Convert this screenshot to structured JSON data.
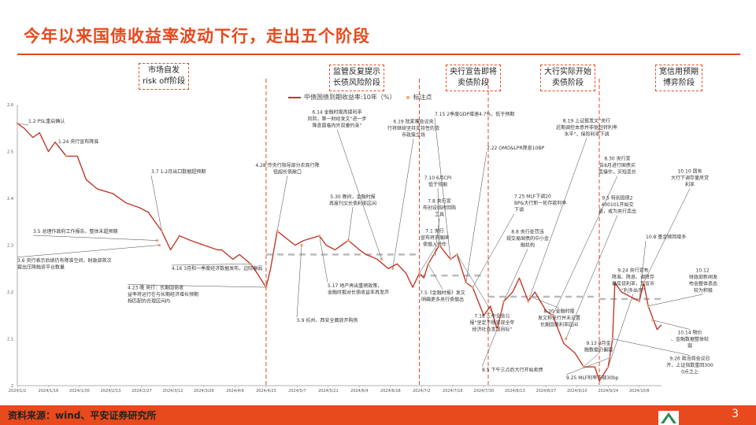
{
  "title": "今年以来国债收益率波动下行，走出五个阶段",
  "phases": [
    {
      "line1": "市场自发",
      "line2": "risk off阶段"
    },
    {
      "line1": "监管反复提示",
      "line2": "长债风险阶段"
    },
    {
      "line1": "央行宣告即将",
      "line2": "卖债阶段"
    },
    {
      "line1": "大行实际开始",
      "line2": "卖债阶段"
    },
    {
      "line1": "宽信用预期",
      "line2": "博弈阶段"
    }
  ],
  "legend": {
    "series": "中债国债到期收益率:10年（%）",
    "marker": "标注点"
  },
  "source": "资料来源：wind、平安证券研究所",
  "page_number": "3",
  "colors": {
    "accent": "#e8491d",
    "line": "#c0392b",
    "dashed_level": "#bbbbbb"
  },
  "chart_data": {
    "type": "line",
    "x_axis_kind": "date",
    "ylim": [
      2.0,
      2.6
    ],
    "y_ticks": [
      "2",
      "2.1",
      "2.2",
      "2.3",
      "2.4",
      "2.5",
      "2.6"
    ],
    "x_ticks": [
      "2024/1/2",
      "2024/1/16",
      "2024/1/30",
      "2024/2/13",
      "2024/2/27",
      "2024/3/12",
      "2024/3/26",
      "2024/4/9",
      "2024/4/23",
      "2024/5/7",
      "2024/5/21",
      "2024/6/4",
      "2024/6/18",
      "2024/7/2",
      "2024/7/16",
      "2024/7/30",
      "2024/8/13",
      "2024/8/27",
      "2024/9/10",
      "2024/9/24",
      "2024/10/8"
    ],
    "phase_dividers": [
      "2024/4/23",
      "2024/7/1",
      "2024/8/1",
      "2024/9/20"
    ],
    "phase_levels": [
      {
        "from": "2024/4/23",
        "to": "2024/6/30",
        "y": 2.28
      },
      {
        "from": "2024/7/1",
        "to": "2024/7/31",
        "y": 2.235
      },
      {
        "from": "2024/8/1",
        "to": "2024/9/20",
        "y": 2.19
      },
      {
        "from": "2024/9/20",
        "to": "2024/10/18",
        "y": 2.185
      }
    ],
    "series": [
      {
        "x": [
          "2024/1/2",
          "2024/1/5",
          "2024/1/9",
          "2024/1/12",
          "2024/1/16",
          "2024/1/19",
          "2024/1/24",
          "2024/1/29",
          "2024/2/2",
          "2024/2/7",
          "2024/2/14",
          "2024/2/20",
          "2024/2/26",
          "2024/3/1",
          "2024/3/7",
          "2024/3/11",
          "2024/3/15",
          "2024/3/20",
          "2024/3/26",
          "2024/4/1",
          "2024/4/3",
          "2024/4/8",
          "2024/4/11",
          "2024/4/16",
          "2024/4/19",
          "2024/4/23",
          "2024/4/25",
          "2024/4/28",
          "2024/5/6",
          "2024/5/10",
          "2024/5/17",
          "2024/5/20",
          "2024/5/24",
          "2024/5/30",
          "2024/6/4",
          "2024/6/7",
          "2024/6/12",
          "2024/6/17",
          "2024/6/21",
          "2024/6/25",
          "2024/6/28",
          "2024/7/1",
          "2024/7/3",
          "2024/7/5",
          "2024/7/10",
          "2024/7/15",
          "2024/7/18",
          "2024/7/22",
          "2024/7/25",
          "2024/7/30",
          "2024/8/2",
          "2024/8/5",
          "2024/8/8",
          "2024/8/12",
          "2024/8/15",
          "2024/8/19",
          "2024/8/22",
          "2024/8/27",
          "2024/8/30",
          "2024/9/4",
          "2024/9/9",
          "2024/9/13",
          "2024/9/18",
          "2024/9/20",
          "2024/9/24",
          "2024/9/26",
          "2024/9/27",
          "2024/9/30",
          "2024/10/8",
          "2024/10/10",
          "2024/10/12",
          "2024/10/16",
          "2024/10/18"
        ],
        "y": [
          2.56,
          2.55,
          2.53,
          2.54,
          2.5,
          2.52,
          2.49,
          2.49,
          2.44,
          2.42,
          2.41,
          2.39,
          2.38,
          2.37,
          2.33,
          2.29,
          2.32,
          2.31,
          2.3,
          2.29,
          2.29,
          2.27,
          2.28,
          2.26,
          2.24,
          2.21,
          2.25,
          2.33,
          2.3,
          2.31,
          2.32,
          2.3,
          2.29,
          2.31,
          2.29,
          2.28,
          2.27,
          2.25,
          2.26,
          2.24,
          2.21,
          2.24,
          2.23,
          2.26,
          2.3,
          2.27,
          2.28,
          2.22,
          2.21,
          2.15,
          2.17,
          2.12,
          2.18,
          2.2,
          2.23,
          2.18,
          2.2,
          2.16,
          2.15,
          2.09,
          2.07,
          2.04,
          2.04,
          2.01,
          2.04,
          2.1,
          2.22,
          2.2,
          2.18,
          2.22,
          2.17,
          2.12,
          2.13
        ]
      }
    ],
    "annotations": [
      {
        "text": "1.2 PSL重启确认",
        "date": "2024/1/2",
        "y": 2.56
      },
      {
        "text": "1.24 央行宣布降准",
        "date": "2024/1/24",
        "y": 2.49
      },
      {
        "text": "3.7 1-2月出口数据超预期",
        "date": "2024/3/7",
        "y": 2.33
      },
      {
        "text": "3.5 总理作政府工作报告，整体未超预期",
        "date": "2024/3/5",
        "y": 2.31
      },
      {
        "text": "3.6 央行表示后续仍有降准空间，财政部首次提出压降融资平台数量",
        "date": "2024/3/6",
        "y": 2.3
      },
      {
        "text": "4.16 3月和一季度经济数据发布，边际偏弱",
        "date": "2024/4/16",
        "y": 2.26
      },
      {
        "text": "4.23 晚 央行：长期国债收益率将运行在与长期经济增长预期相匹配的合理区间内",
        "date": "2024/4/23",
        "y": 2.21
      },
      {
        "text": "4.28 传央行指导部分农商行降低超长债敞口",
        "date": "2024/4/28",
        "y": 2.33
      },
      {
        "text": "5.9 杭州、西安全面放开购房",
        "date": "2024/5/9",
        "y": 2.3
      },
      {
        "text": "5.17 地产再出重磅政策，金融时报对长债收益率再发声",
        "date": "2024/5/17",
        "y": 2.32
      },
      {
        "text": "5.30 晚间，金融时报再度刊文长债利率区间",
        "date": "2024/5/30",
        "y": 2.31
      },
      {
        "text": "6.14 金融时报再提利率风险，第一财经发文“进一步降息面临内外双重约束”",
        "date": "2024/6/14",
        "y": 2.27
      },
      {
        "text": "6.19 陆家嘴会议央行将继续坚持支持性的货币政策立场",
        "date": "2024/6/19",
        "y": 2.25
      },
      {
        "text": "7.1 央行宣布将开展国债借入操作",
        "date": "2024/7/1",
        "y": 2.24
      },
      {
        "text": "7.5《金融时报》发文明确更多央行债借出",
        "date": "2024/7/5",
        "y": 2.26
      },
      {
        "text": "7.8 央行宣布创设临时回购工具",
        "date": "2024/7/8",
        "y": 2.28
      },
      {
        "text": "7.10 6月CPI低于预期",
        "date": "2024/7/10",
        "y": 2.3
      },
      {
        "text": "7.15 2季度GDP增速4.7%，低于预期",
        "date": "2024/7/15",
        "y": 2.27
      },
      {
        "text": "7.18 三中全会公报“坚定不移实现全年经济社会发展目标”",
        "date": "2024/7/18",
        "y": 2.28
      },
      {
        "text": "7.22 OMO&LPR降息10BP",
        "date": "2024/7/22",
        "y": 2.22
      },
      {
        "text": "7.25 MLF下调20BP&大行新一轮存款利率下调",
        "date": "2024/7/25",
        "y": 2.21
      },
      {
        "text": "8.5 下午三点后大行开始卖债",
        "date": "2024/8/5",
        "y": 2.12
      },
      {
        "text": "8.8 央行处罚违规交易国债的中小金融机构",
        "date": "2024/8/8",
        "y": 2.18
      },
      {
        "text": "8.19 上证报发文“央行近期调控本意并非驱赶转利率水平”，保险利率下调",
        "date": "2024/8/19",
        "y": 2.18
      },
      {
        "text": "8.20 金融时报发文称央行并未设置长期国债利率区间",
        "date": "2024/8/20",
        "y": 2.19
      },
      {
        "text": "8.30 央行宣告8月进行国债买卖操作，买短卖长",
        "date": "2024/8/30",
        "y": 2.15
      },
      {
        "text": "9.5 特别国债2400101开始交易，或为央行卖出",
        "date": "2024/9/5",
        "y": 2.1
      },
      {
        "text": "9.13 8月金融数据仍偏弱",
        "date": "2024/9/13",
        "y": 2.04
      },
      {
        "text": "9.24 央行宣布降准、降息、调降存量房贷利率，宽货币“利多出尽”",
        "date": "2024/9/24",
        "y": 2.04
      },
      {
        "text": "9.25 MLF利率下调30bp",
        "date": "2024/9/25",
        "y": 2.06
      },
      {
        "text": "9.26 政治局会议召开，上证指数重回3000点之上",
        "date": "2024/9/26",
        "y": 2.1
      },
      {
        "text": "10.10 国有大行下调存量房贷利率",
        "date": "2024/10/10",
        "y": 2.22
      },
      {
        "text": "10.12 财政部新闻发布会整体表态较为积极",
        "date": "2024/10/12",
        "y": 2.17
      },
      {
        "text": "10.14 物价、金融数据整体较弱",
        "date": "2024/10/14",
        "y": 2.14
      },
      {
        "text": "10.8 基金赎回增多",
        "date": "2024/10/8",
        "y": 2.18
      }
    ]
  }
}
